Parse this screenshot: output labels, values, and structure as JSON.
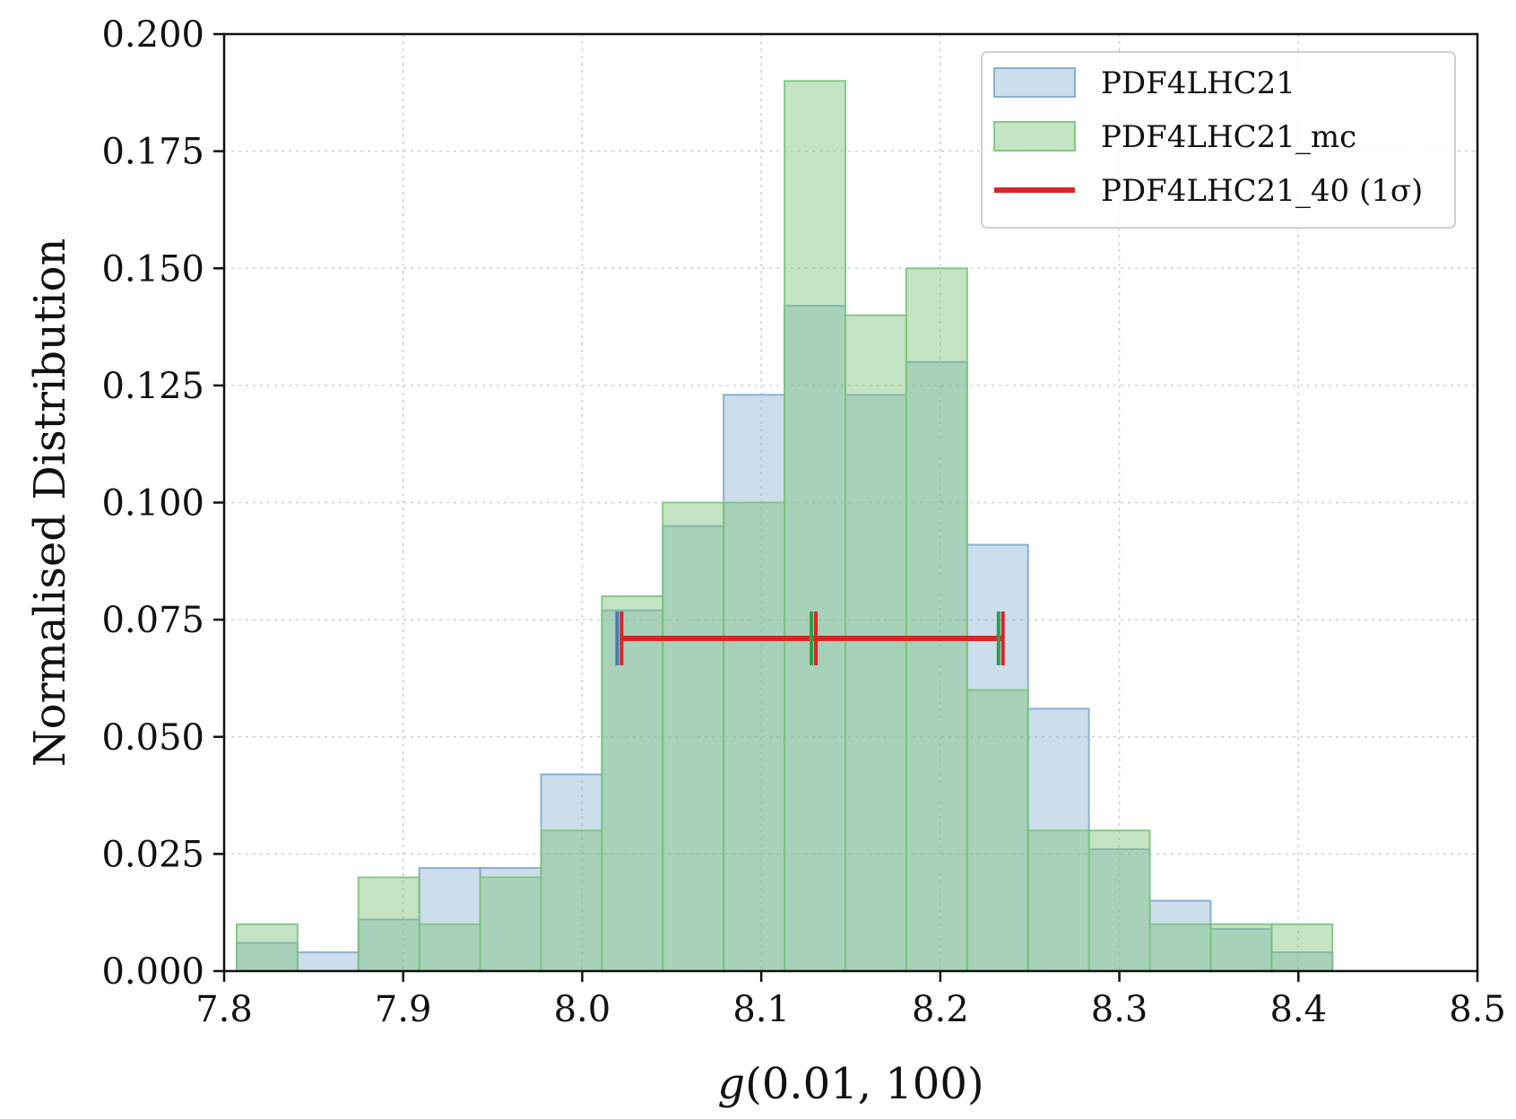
{
  "chart_data": {
    "type": "bar",
    "subtype": "histogram",
    "xlabel_italic": "g",
    "xlabel_rest": "(0.01, 100)",
    "ylabel": "Normalised Distribution",
    "xlim": [
      7.8,
      8.5
    ],
    "ylim": [
      0,
      0.2
    ],
    "x_ticks": [
      "7.8",
      "7.9",
      "8.0",
      "8.1",
      "8.2",
      "8.3",
      "8.4",
      "8.5"
    ],
    "y_ticks": [
      "0.000",
      "0.025",
      "0.050",
      "0.075",
      "0.100",
      "0.125",
      "0.150",
      "0.175",
      "0.200"
    ],
    "grid": true,
    "legend_position": "top-right",
    "bin_edges": [
      7.807,
      7.841,
      7.875,
      7.909,
      7.943,
      7.977,
      8.011,
      8.045,
      8.079,
      8.113,
      8.147,
      8.181,
      8.215,
      8.249,
      8.283,
      8.317,
      8.351,
      8.385,
      8.419
    ],
    "series": [
      {
        "name": "PDF4LHC21",
        "color": "#7FA9CF",
        "opacity": 0.4,
        "values": [
          0.006,
          0.004,
          0.011,
          0.022,
          0.022,
          0.042,
          0.077,
          0.095,
          0.123,
          0.142,
          0.123,
          0.13,
          0.091,
          0.056,
          0.026,
          0.015,
          0.009,
          0.004
        ]
      },
      {
        "name": "PDF4LHC21_mc",
        "color": "#7CC47C",
        "opacity": 0.45,
        "values": [
          0.01,
          0.0,
          0.02,
          0.01,
          0.02,
          0.03,
          0.08,
          0.1,
          0.1,
          0.19,
          0.14,
          0.15,
          0.06,
          0.03,
          0.03,
          0.01,
          0.01,
          0.01
        ]
      }
    ],
    "error_bar": {
      "name": "PDF4LHC21_40 (1σ)",
      "color": "#D62728",
      "y": 0.071,
      "center": 8.128,
      "low": 8.022,
      "high": 8.235
    }
  }
}
